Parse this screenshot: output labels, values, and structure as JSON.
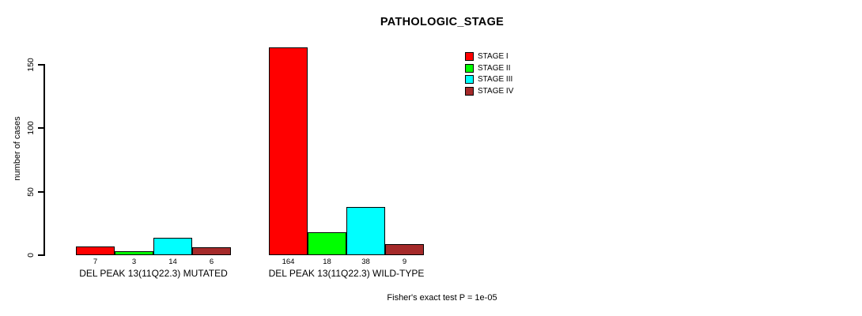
{
  "chart_data": {
    "type": "bar",
    "title": "PATHOLOGIC_STAGE",
    "xlabel": "",
    "ylabel": "number of cases",
    "ylim": [
      0,
      150
    ],
    "yticks": [
      0,
      50,
      100,
      150
    ],
    "grid": false,
    "legend_position": "top-right",
    "categories": [
      "DEL PEAK 13(11Q22.3) MUTATED",
      "DEL PEAK 13(11Q22.3) WILD-TYPE"
    ],
    "series": [
      {
        "name": "STAGE I",
        "color": "#FF0000",
        "values": [
          7,
          164
        ]
      },
      {
        "name": "STAGE II",
        "color": "#00FF00",
        "values": [
          3,
          18
        ]
      },
      {
        "name": "STAGE III",
        "color": "#00FFFF",
        "values": [
          14,
          38
        ]
      },
      {
        "name": "STAGE IV",
        "color": "#A52A2A",
        "values": [
          6,
          9
        ]
      }
    ],
    "bar_value_labels": [
      [
        7,
        3,
        14,
        6
      ],
      [
        164,
        18,
        38,
        9
      ]
    ],
    "annotation": "Fisher's exact test P = 1e-05"
  }
}
